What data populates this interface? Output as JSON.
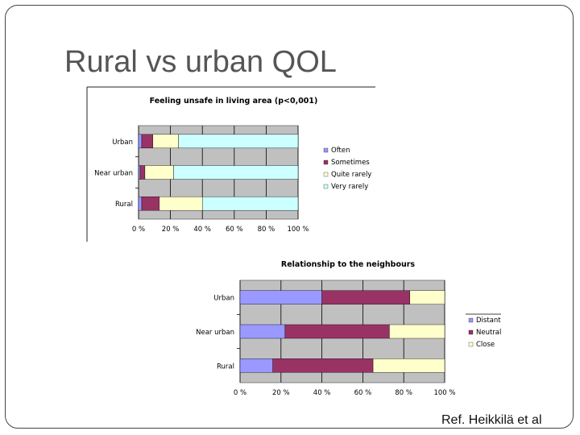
{
  "slide": {
    "title": "Rural vs urban QOL",
    "reference": "Ref. Heikkilä et al"
  },
  "chart_data": [
    {
      "type": "bar",
      "orientation": "horizontal",
      "stacked": true,
      "percent": true,
      "title": "Feeling unsafe in living area (p<0,001)",
      "categories": [
        "Urban",
        "Near urban",
        "Rural"
      ],
      "series": [
        {
          "name": "Often",
          "color": "#9999ff",
          "values": [
            2,
            1,
            2
          ]
        },
        {
          "name": "Sometimes",
          "color": "#993366",
          "values": [
            7,
            3,
            11
          ]
        },
        {
          "name": "Quite rarely",
          "color": "#ffffcc",
          "values": [
            16,
            18,
            27
          ]
        },
        {
          "name": "Very rarely",
          "color": "#ccffff",
          "values": [
            75,
            78,
            60
          ]
        }
      ],
      "xticks": [
        "0 %",
        "20 %",
        "40 %",
        "60 %",
        "80 %",
        "100 %"
      ],
      "xlim": [
        0,
        100
      ],
      "grid": true,
      "legend_position": "right",
      "plot_background": "#c0c0c0"
    },
    {
      "type": "bar",
      "orientation": "horizontal",
      "stacked": true,
      "percent": true,
      "title": "Relationship to the neighbours",
      "categories": [
        "Urban",
        "Near urban",
        "Rural"
      ],
      "series": [
        {
          "name": "Distant",
          "color": "#9999ff",
          "values": [
            40,
            22,
            16
          ]
        },
        {
          "name": "Neutral",
          "color": "#993366",
          "values": [
            43,
            51,
            49
          ]
        },
        {
          "name": "Close",
          "color": "#ffffcc",
          "values": [
            17,
            27,
            35
          ]
        }
      ],
      "xticks": [
        "0 %",
        "20 %",
        "40 %",
        "60 %",
        "80 %",
        "100 %"
      ],
      "xlim": [
        0,
        100
      ],
      "grid": true,
      "legend_position": "right",
      "plot_background": "#c0c0c0"
    }
  ]
}
